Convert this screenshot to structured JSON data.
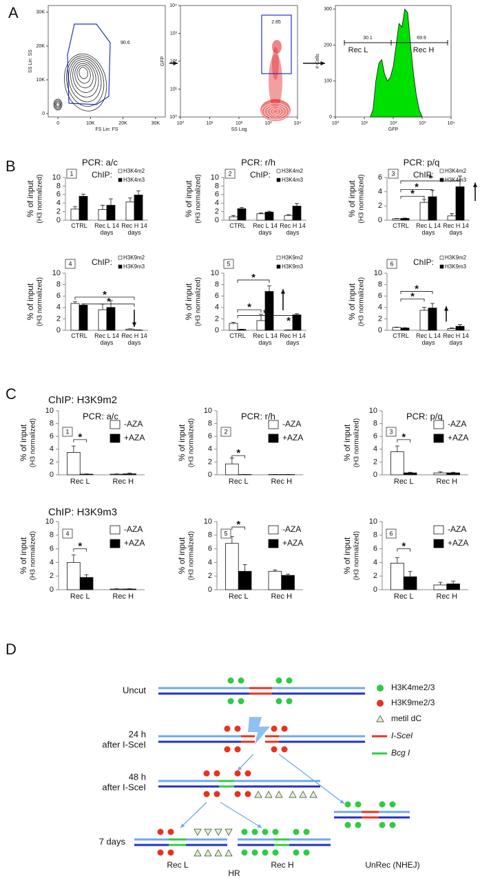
{
  "panels": [
    "A",
    "B",
    "C",
    "D"
  ],
  "chart_data": [
    {
      "type": "contour",
      "x_label": "FS Lin: FS",
      "y_label": "SS Lin: SS",
      "xlim": [
        -3000,
        33000
      ],
      "xticks": [
        0,
        {
          "value": 10000,
          "label": "10K"
        },
        {
          "value": 20000,
          "label": "20K"
        },
        {
          "value": 30000,
          "label": "30K"
        }
      ],
      "ylim": [
        -1000,
        32000
      ],
      "yticks": [
        0,
        {
          "value": 10000,
          "label": "10K"
        },
        {
          "value": 20000,
          "label": "20K"
        },
        {
          "value": 30000,
          "label": "30K"
        }
      ],
      "annotations": [
        "90.6"
      ]
    },
    {
      "type": "scatter",
      "x_label": "SS Log",
      "y_label": "GFP",
      "xscale": "log",
      "yscale": "log",
      "xlim": [
        1,
        10000
      ],
      "xticks": [
        {
          "value": 1,
          "label": "10⁰"
        },
        {
          "value": 10,
          "label": "10¹"
        },
        {
          "value": 100,
          "label": "10²"
        },
        {
          "value": 1000,
          "label": "10³"
        },
        {
          "value": 10000,
          "label": "10⁴"
        }
      ],
      "ylim": [
        1,
        10000
      ],
      "yticks": [
        {
          "value": 1,
          "label": "10⁰"
        },
        {
          "value": 10,
          "label": "10¹"
        },
        {
          "value": 100,
          "label": "10²"
        },
        {
          "value": 1000,
          "label": "10³"
        },
        {
          "value": 10000,
          "label": "10⁴"
        }
      ],
      "annotations": [
        "2.85"
      ]
    },
    {
      "type": "area",
      "x_label": "GFP",
      "y_label": "# Cells",
      "xscale": "log",
      "color": "#00e000",
      "xlim": [
        1,
        10000
      ],
      "xticks": [
        {
          "value": 1,
          "label": "10⁰"
        },
        {
          "value": 10,
          "label": "10¹"
        },
        {
          "value": 100,
          "label": "10²"
        },
        {
          "value": 1000,
          "label": "10³"
        },
        {
          "value": 10000,
          "label": "10⁴"
        }
      ],
      "ylim": [
        0,
        310
      ],
      "yticks": [
        0,
        100,
        200,
        300
      ],
      "x": [
        16,
        20,
        25,
        32,
        40,
        50,
        63,
        79,
        100,
        126,
        158,
        200,
        251,
        316,
        398,
        501,
        631,
        794,
        1000
      ],
      "values": [
        0,
        20,
        100,
        150,
        160,
        120,
        100,
        110,
        140,
        200,
        260,
        250,
        300,
        290,
        200,
        120,
        60,
        20,
        0
      ],
      "annotations": [
        "30.1",
        "69.9",
        "Rec L",
        "Rec H"
      ]
    },
    {
      "type": "bar",
      "label": "1",
      "title": "PCR: a/c",
      "legend_title": "ChIP:",
      "y_label": "% of input",
      "y_label_sub": "(H3 normalized)",
      "categories": [
        "CTRL",
        "Rec L 14 days",
        "Rec H 14 days"
      ],
      "ylim": [
        0,
        10
      ],
      "yticks": [
        0,
        2,
        4,
        6,
        8,
        10
      ],
      "series": [
        {
          "name": "H3K4m2",
          "color": "#ffffff",
          "values": [
            2.6,
            2.5,
            4.3
          ],
          "errors": [
            0.6,
            1.0,
            0.9
          ]
        },
        {
          "name": "H3K4m3",
          "color": "#000000",
          "values": [
            5.6,
            3.5,
            5.9
          ],
          "errors": [
            0.5,
            1.5,
            1.0
          ]
        }
      ]
    },
    {
      "type": "bar",
      "label": "2",
      "title": "PCR: r/h",
      "legend_title": "ChIP:",
      "y_label": "% of input",
      "y_label_sub": "(H3 normalized)",
      "categories": [
        "CTRL",
        "Rec L 14 days",
        "Rec H 14 days"
      ],
      "ylim": [
        0,
        10
      ],
      "yticks": [
        0,
        2,
        4,
        6,
        8,
        10
      ],
      "series": [
        {
          "name": "H3K4m2",
          "color": "#ffffff",
          "values": [
            0.8,
            1.5,
            1.1
          ],
          "errors": [
            0.3,
            0.2,
            0.2
          ]
        },
        {
          "name": "H3K4m3",
          "color": "#000000",
          "values": [
            2.7,
            1.9,
            3.3
          ],
          "errors": [
            0.3,
            0.2,
            0.6
          ]
        }
      ]
    },
    {
      "type": "bar",
      "label": "3",
      "title": "PCR: p/q",
      "legend_title": "ChIP:",
      "y_label": "% of input",
      "y_label_sub": "(H3 normalized)",
      "categories": [
        "CTRL",
        "Rec L 14 days",
        "Rec H 14 days"
      ],
      "ylim": [
        0,
        6
      ],
      "yticks": [
        0,
        2,
        4,
        6
      ],
      "series": [
        {
          "name": "H3K4m2",
          "color": "#ffffff",
          "values": [
            0.2,
            2.5,
            0.6
          ],
          "errors": [
            0.05,
            0.4,
            0.3
          ]
        },
        {
          "name": "H3K4m3",
          "color": "#000000",
          "values": [
            0.25,
            3.3,
            4.7
          ],
          "errors": [
            0.05,
            0.9,
            1.5
          ]
        }
      ],
      "annotations": [
        "*",
        "*",
        "*"
      ]
    },
    {
      "type": "bar",
      "label": "4",
      "legend_title": "ChIP:",
      "y_label": "% of input",
      "y_label_sub": "(H3 normalized)",
      "categories": [
        "CTRL",
        "Rec L 14 days",
        "Rec H 14 days"
      ],
      "ylim": [
        0,
        10
      ],
      "yticks": [
        0,
        2,
        4,
        6,
        8,
        10
      ],
      "series": [
        {
          "name": "H3K9m2",
          "color": "#ffffff",
          "values": [
            4.7,
            3.6,
            0.2
          ],
          "errors": [
            0.3,
            1.0,
            0.05
          ]
        },
        {
          "name": "H3K9m3",
          "color": "#000000",
          "values": [
            4.4,
            4.0,
            0.05
          ],
          "errors": [
            0.2,
            1.2,
            0.02
          ]
        }
      ],
      "annotations": [
        "*",
        "*"
      ]
    },
    {
      "type": "bar",
      "label": "5",
      "y_label": "% of input",
      "y_label_sub": "(H3 normalized)",
      "categories": [
        "CTRL",
        "Rec L 14 days",
        "Rec H 14 days"
      ],
      "ylim": [
        0,
        10
      ],
      "yticks": [
        0,
        2,
        4,
        6,
        8,
        10
      ],
      "series": [
        {
          "name": "H3K9m2",
          "color": "#ffffff",
          "values": [
            1.2,
            1.7,
            0.05
          ],
          "errors": [
            0.2,
            1.1,
            0.02
          ]
        },
        {
          "name": "H3K9m3",
          "color": "#000000",
          "values": [
            0.15,
            6.8,
            2.7
          ],
          "errors": [
            0.05,
            1.0,
            0.2
          ]
        }
      ],
      "annotations": [
        "*",
        "*",
        "*",
        "*"
      ]
    },
    {
      "type": "bar",
      "label": "6",
      "legend_title": "ChIP:",
      "y_label": "% of input",
      "y_label_sub": "(H3 normalized)",
      "categories": [
        "CTRL",
        "Rec L 14 days",
        "Rec H 14 days"
      ],
      "ylim": [
        0,
        10
      ],
      "yticks": [
        0,
        2,
        4,
        6,
        8,
        10
      ],
      "series": [
        {
          "name": "H3K9m2",
          "color": "#ffffff",
          "values": [
            0.5,
            3.5,
            0.3
          ],
          "errors": [
            0.05,
            0.5,
            0.1
          ]
        },
        {
          "name": "H3K9m3",
          "color": "#000000",
          "values": [
            0.4,
            3.9,
            0.7
          ],
          "errors": [
            0.05,
            0.8,
            0.3
          ]
        }
      ],
      "annotations": [
        "*",
        "*"
      ]
    },
    {
      "type": "bar",
      "label": "1",
      "heading": "ChIP: H3K9m2",
      "title": "PCR: a/c",
      "y_label": "% of input",
      "y_label_sub": "(H3 normalized)",
      "categories": [
        "Rec L",
        "Rec H"
      ],
      "ylim": [
        0,
        10
      ],
      "yticks": [
        0,
        2,
        4,
        6,
        8,
        10
      ],
      "series": [
        {
          "name": "-AZA",
          "color": "#ffffff",
          "values": [
            3.5,
            0.1
          ],
          "errors": [
            1.0,
            0.05
          ]
        },
        {
          "name": "+AZA",
          "color": "#000000",
          "values": [
            0.1,
            0.15
          ],
          "errors": [
            0.05,
            0.1
          ]
        }
      ],
      "annotations": [
        "*"
      ]
    },
    {
      "type": "bar",
      "label": "2",
      "title": "PCR: r/h",
      "y_label": "% of input",
      "y_label_sub": "(H3 normalized)",
      "categories": [
        "Rec L",
        "Rec H"
      ],
      "ylim": [
        0,
        10
      ],
      "yticks": [
        0,
        2,
        4,
        6,
        8,
        10
      ],
      "series": [
        {
          "name": "-AZA",
          "color": "#ffffff",
          "values": [
            1.7,
            0.05
          ],
          "errors": [
            0.9,
            0.02
          ]
        },
        {
          "name": "+AZA",
          "color": "#000000",
          "values": [
            0.05,
            0.05
          ],
          "errors": [
            0.02,
            0.02
          ]
        }
      ],
      "annotations": [
        "*"
      ]
    },
    {
      "type": "bar",
      "label": "3",
      "title": "PCR: p/q",
      "y_label": "% of input",
      "y_label_sub": "(H3 normalized)",
      "categories": [
        "Rec L",
        "Rec H"
      ],
      "ylim": [
        0,
        10
      ],
      "yticks": [
        0,
        2,
        4,
        6,
        8,
        10
      ],
      "series": [
        {
          "name": "-AZA",
          "color": "#ffffff",
          "values": [
            3.6,
            0.3
          ],
          "errors": [
            0.9,
            0.15
          ]
        },
        {
          "name": "+AZA",
          "color": "#000000",
          "values": [
            0.3,
            0.3
          ],
          "errors": [
            0.1,
            0.1
          ]
        }
      ],
      "annotations": [
        "*"
      ]
    },
    {
      "type": "bar",
      "label": "4",
      "heading": "ChIP: H3K9m3",
      "y_label": "% of input",
      "y_label_sub": "(H3 normalized)",
      "categories": [
        "Rec L",
        "Rec H"
      ],
      "ylim": [
        0,
        10
      ],
      "yticks": [
        0,
        2,
        4,
        6,
        8,
        10
      ],
      "series": [
        {
          "name": "-AZA",
          "color": "#ffffff",
          "values": [
            4.0,
            0.1
          ],
          "errors": [
            1.1,
            0.05
          ]
        },
        {
          "name": "+AZA",
          "color": "#000000",
          "values": [
            1.8,
            0.1
          ],
          "errors": [
            0.4,
            0.05
          ]
        }
      ],
      "annotations": [
        "*"
      ]
    },
    {
      "type": "bar",
      "label": "5",
      "y_label": "% of input",
      "y_label_sub": "(H3 normalized)",
      "categories": [
        "Rec L",
        "Rec H"
      ],
      "ylim": [
        0,
        10
      ],
      "yticks": [
        0,
        2,
        4,
        6,
        8,
        10
      ],
      "series": [
        {
          "name": "-AZA",
          "color": "#ffffff",
          "values": [
            6.8,
            2.7
          ],
          "errors": [
            1.0,
            0.2
          ]
        },
        {
          "name": "+AZA",
          "color": "#000000",
          "values": [
            2.7,
            2.1
          ],
          "errors": [
            1.0,
            0.2
          ]
        }
      ],
      "annotations": [
        "*"
      ]
    },
    {
      "type": "bar",
      "label": "6",
      "y_label": "% of input",
      "y_label_sub": "(H3 normalized)",
      "categories": [
        "Rec L",
        "Rec H"
      ],
      "ylim": [
        0,
        10
      ],
      "yticks": [
        0,
        2,
        4,
        6,
        8,
        10
      ],
      "series": [
        {
          "name": "-AZA",
          "color": "#ffffff",
          "values": [
            3.9,
            0.7
          ],
          "errors": [
            0.8,
            0.4
          ]
        },
        {
          "name": "+AZA",
          "color": "#000000",
          "values": [
            1.9,
            0.85
          ],
          "errors": [
            0.8,
            0.4
          ]
        }
      ],
      "annotations": [
        "*"
      ]
    }
  ],
  "diagram": {
    "stage_labels": [
      [
        "Uncut"
      ],
      [
        "24 h",
        "after I-SceI"
      ],
      [
        "48 h",
        "after I-SceI"
      ],
      [
        "7 days"
      ]
    ],
    "legend": [
      "H3K4me2/3",
      "H3K9me2/3",
      "metil dC",
      "I-SceI",
      "Bcg I"
    ],
    "outcomes": [
      "Rec L",
      "Rec H",
      "HR",
      "UnRec (NHEJ)"
    ]
  }
}
